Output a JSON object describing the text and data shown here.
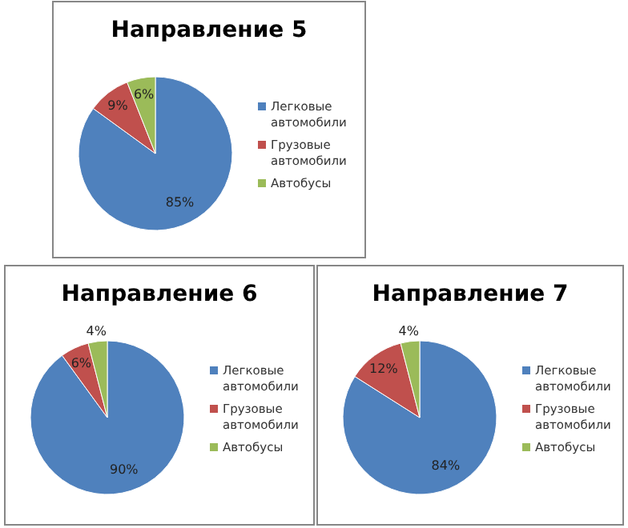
{
  "chart_data": [
    {
      "type": "pie",
      "title": "Направление 5",
      "categories": [
        "Легковые автомобили",
        "Грузовые автомобили",
        "Автобусы"
      ],
      "values": [
        85,
        9,
        6
      ],
      "value_labels": [
        "85%",
        "9%",
        "6%"
      ],
      "colors": [
        "#4f81bd",
        "#c0504d",
        "#9bbb59"
      ],
      "legend": "right"
    },
    {
      "type": "pie",
      "title": "Направление 6",
      "categories": [
        "Легковые автомобили",
        "Грузовые автомобили",
        "Автобусы"
      ],
      "values": [
        90,
        6,
        4
      ],
      "value_labels": [
        "90%",
        "6%",
        "4%"
      ],
      "colors": [
        "#4f81bd",
        "#c0504d",
        "#9bbb59"
      ],
      "legend": "right"
    },
    {
      "type": "pie",
      "title": "Направление 7",
      "categories": [
        "Легковые автомобили",
        "Грузовые автомобили",
        "Автобусы"
      ],
      "values": [
        84,
        12,
        4
      ],
      "value_labels": [
        "84%",
        "12%",
        "4%"
      ],
      "colors": [
        "#4f81bd",
        "#c0504d",
        "#9bbb59"
      ],
      "legend": "right"
    }
  ]
}
